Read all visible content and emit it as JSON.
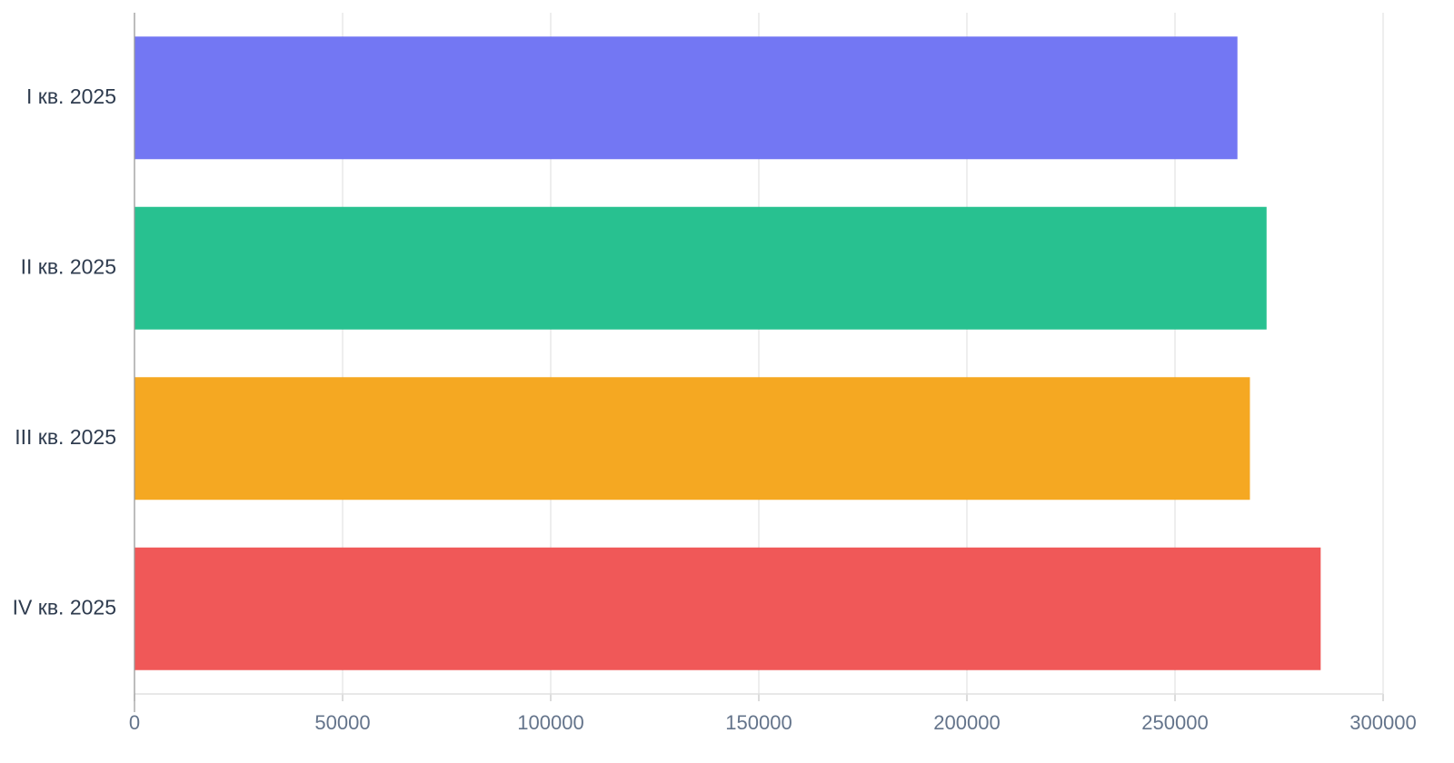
{
  "chart_data": {
    "type": "bar",
    "orientation": "horizontal",
    "categories": [
      "I кв. 2025",
      "II кв. 2025",
      "III кв. 2025",
      "IV кв. 2025"
    ],
    "values": [
      265000,
      272000,
      268000,
      285000
    ],
    "colors": [
      "#7377f3",
      "#28c190",
      "#f5a822",
      "#f05858"
    ],
    "xlim": [
      0,
      300000
    ],
    "xticks": [
      0,
      50000,
      100000,
      150000,
      200000,
      250000,
      300000
    ],
    "grid": true
  }
}
